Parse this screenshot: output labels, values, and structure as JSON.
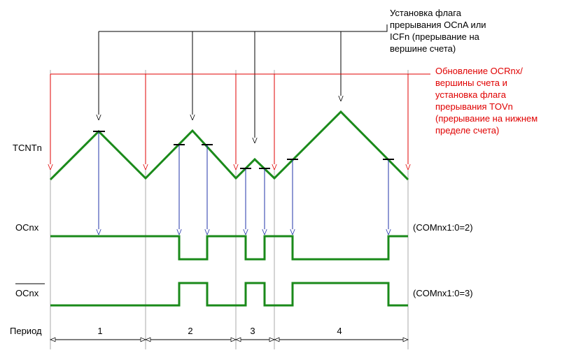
{
  "top_note": {
    "lines": [
      "Установка флага",
      "прерывания OCnA или",
      "ICFn (прерывание на",
      "вершине счета)"
    ]
  },
  "red_note": {
    "lines": [
      "Обновление OCRnx/",
      "вершины счета и",
      "установка флага",
      "прерывания TOVn",
      "(прерывание на нижнем",
      "пределе счета)"
    ]
  },
  "signals": [
    {
      "label": "TCNTn"
    },
    {
      "label": "OCnx",
      "mode": "(COMnx1:0=2)"
    },
    {
      "label": "OCnx",
      "mode": "(COMnx1:0=3)"
    }
  ],
  "period": {
    "label": "Период",
    "numbers": [
      "1",
      "2",
      "3",
      "4"
    ]
  }
}
